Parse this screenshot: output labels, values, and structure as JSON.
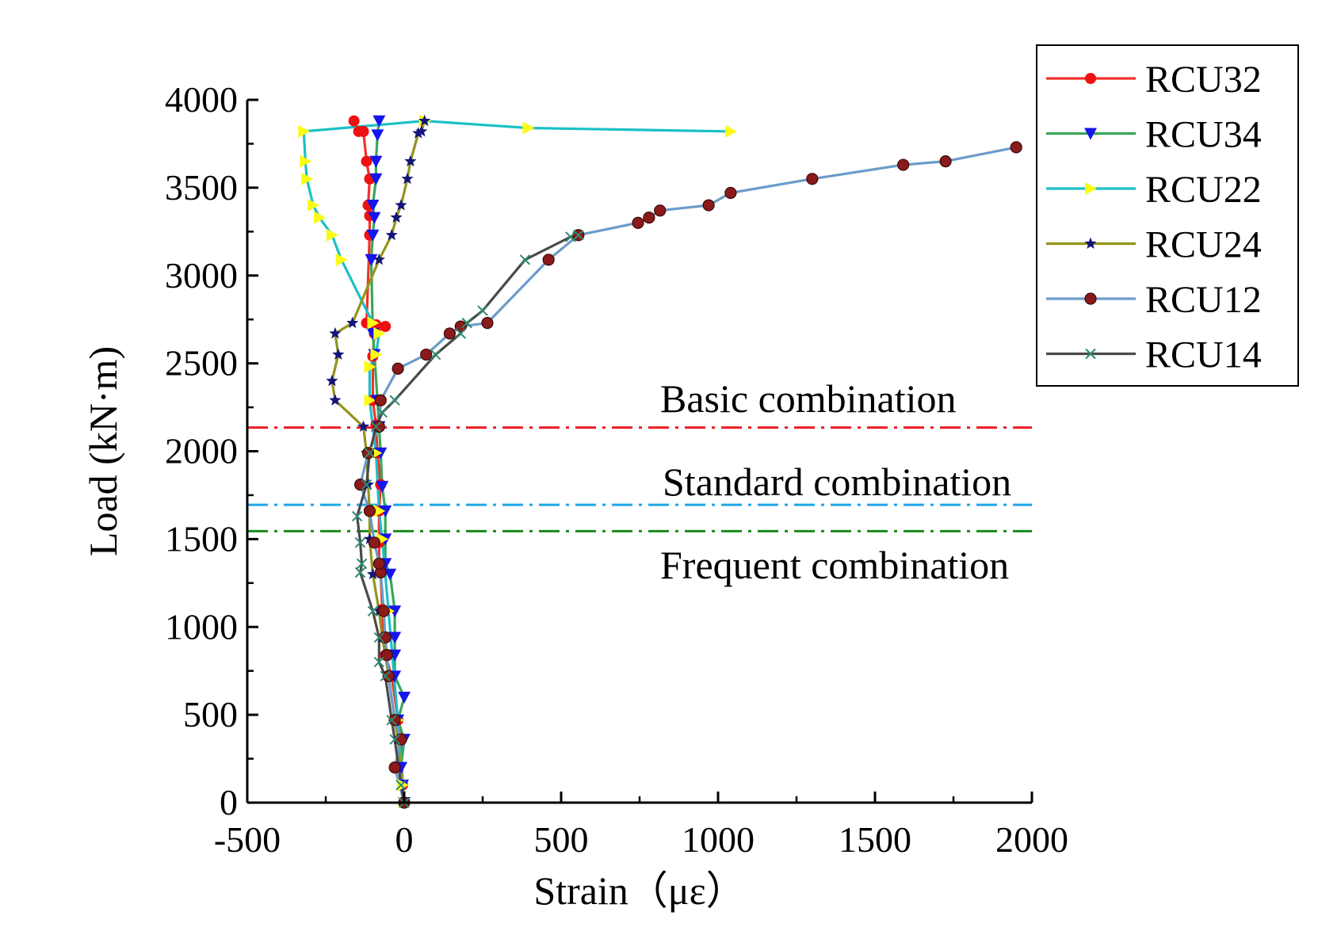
{
  "chart_data": {
    "type": "line",
    "title": "",
    "xlabel": "Strain（με）",
    "ylabel": "Load (kN·m)",
    "xlim": [
      -500,
      2000
    ],
    "ylim": [
      0,
      4000
    ],
    "x_ticks": [
      -500,
      0,
      500,
      1000,
      1500,
      2000
    ],
    "y_ticks": [
      0,
      500,
      1000,
      1500,
      2000,
      2500,
      3000,
      3500,
      4000
    ],
    "grid": false,
    "legend_position": "top-right",
    "reference_lines": [
      {
        "label": "Basic combination",
        "y": 2135,
        "color": "#ee1c24"
      },
      {
        "label": "Standard combination",
        "y": 1695,
        "color": "#1ea7e6"
      },
      {
        "label": "Frequent combination",
        "y": 1545,
        "color": "#1c8a1c"
      }
    ],
    "series": [
      {
        "name": "RCU32",
        "color": "#f0332a",
        "marker": "circle",
        "marker_color": "#ee1111",
        "points": [
          [
            0,
            0
          ],
          [
            -5,
            100
          ],
          [
            -10,
            360
          ],
          [
            -20,
            470
          ],
          [
            -40,
            720
          ],
          [
            -60,
            840
          ],
          [
            -65,
            940
          ],
          [
            -70,
            1100
          ],
          [
            -75,
            1310
          ],
          [
            -80,
            1360
          ],
          [
            -80,
            1480
          ],
          [
            -80,
            1660
          ],
          [
            -75,
            1810
          ],
          [
            -85,
            1990
          ],
          [
            -90,
            2150
          ],
          [
            -100,
            2290
          ],
          [
            -100,
            2540
          ],
          [
            -95,
            2670
          ],
          [
            -60,
            2710
          ],
          [
            -90,
            2720
          ],
          [
            -120,
            2730
          ],
          [
            -110,
            3230
          ],
          [
            -110,
            3340
          ],
          [
            -115,
            3400
          ],
          [
            -110,
            3550
          ],
          [
            -120,
            3650
          ],
          [
            -130,
            3820
          ],
          [
            -145,
            3820
          ],
          [
            -160,
            3880
          ]
        ]
      },
      {
        "name": "RCU34",
        "color": "#3aa65a",
        "marker": "triangle-down",
        "marker_color": "#1515ee",
        "points": [
          [
            0,
            0
          ],
          [
            -5,
            100
          ],
          [
            -10,
            200
          ],
          [
            0,
            360
          ],
          [
            -20,
            470
          ],
          [
            0,
            600
          ],
          [
            -30,
            720
          ],
          [
            -30,
            840
          ],
          [
            -30,
            940
          ],
          [
            -30,
            1090
          ],
          [
            -45,
            1300
          ],
          [
            -60,
            1360
          ],
          [
            -60,
            1500
          ],
          [
            -60,
            1660
          ],
          [
            -70,
            1800
          ],
          [
            -75,
            1990
          ],
          [
            -80,
            2140
          ],
          [
            -85,
            2290
          ],
          [
            -95,
            2550
          ],
          [
            -100,
            2670
          ],
          [
            -105,
            3090
          ],
          [
            -100,
            3230
          ],
          [
            -95,
            3330
          ],
          [
            -100,
            3400
          ],
          [
            -90,
            3550
          ],
          [
            -90,
            3650
          ],
          [
            -85,
            3800
          ],
          [
            -80,
            3880
          ]
        ]
      },
      {
        "name": "RCU22",
        "color": "#1bc0c6",
        "marker": "triangle-right",
        "marker_color": "#fbfb14",
        "points": [
          [
            0,
            0
          ],
          [
            -5,
            100
          ],
          [
            -20,
            470
          ],
          [
            -50,
            1090
          ],
          [
            -70,
            1500
          ],
          [
            -80,
            1660
          ],
          [
            -90,
            1990
          ],
          [
            -110,
            2290
          ],
          [
            -110,
            2480
          ],
          [
            -90,
            2550
          ],
          [
            -80,
            2670
          ],
          [
            -100,
            2730
          ],
          [
            -200,
            3090
          ],
          [
            -230,
            3230
          ],
          [
            -270,
            3330
          ],
          [
            -290,
            3400
          ],
          [
            -310,
            3550
          ],
          [
            -315,
            3650
          ],
          [
            -320,
            3820
          ],
          [
            65,
            3880
          ],
          [
            395,
            3840
          ],
          [
            1040,
            3820
          ]
        ]
      },
      {
        "name": "RCU24",
        "color": "#93941c",
        "marker": "star",
        "marker_color": "#14147a",
        "points": [
          [
            0,
            0
          ],
          [
            -20,
            360
          ],
          [
            -30,
            470
          ],
          [
            -50,
            720
          ],
          [
            -60,
            840
          ],
          [
            -70,
            940
          ],
          [
            -80,
            1090
          ],
          [
            -100,
            1300
          ],
          [
            -110,
            1500
          ],
          [
            -110,
            1660
          ],
          [
            -115,
            1810
          ],
          [
            -120,
            1990
          ],
          [
            -130,
            2140
          ],
          [
            -220,
            2290
          ],
          [
            -230,
            2400
          ],
          [
            -210,
            2550
          ],
          [
            -220,
            2670
          ],
          [
            -165,
            2730
          ],
          [
            -80,
            3090
          ],
          [
            -40,
            3230
          ],
          [
            -25,
            3330
          ],
          [
            -10,
            3400
          ],
          [
            10,
            3550
          ],
          [
            20,
            3650
          ],
          [
            45,
            3810
          ],
          [
            55,
            3820
          ],
          [
            65,
            3880
          ]
        ]
      },
      {
        "name": "RCU12",
        "color": "#6b9cc9",
        "marker": "sphere",
        "marker_color": "#8b1a1a",
        "points": [
          [
            0,
            0
          ],
          [
            -30,
            200
          ],
          [
            -10,
            360
          ],
          [
            -30,
            470
          ],
          [
            -50,
            720
          ],
          [
            -55,
            840
          ],
          [
            -60,
            940
          ],
          [
            -65,
            1090
          ],
          [
            -75,
            1310
          ],
          [
            -80,
            1360
          ],
          [
            -95,
            1480
          ],
          [
            -110,
            1660
          ],
          [
            -140,
            1810
          ],
          [
            -115,
            1990
          ],
          [
            -80,
            2140
          ],
          [
            -75,
            2290
          ],
          [
            -20,
            2470
          ],
          [
            70,
            2550
          ],
          [
            145,
            2670
          ],
          [
            180,
            2710
          ],
          [
            265,
            2730
          ],
          [
            460,
            3090
          ],
          [
            555,
            3230
          ],
          [
            745,
            3300
          ],
          [
            780,
            3330
          ],
          [
            815,
            3370
          ],
          [
            970,
            3400
          ],
          [
            1040,
            3470
          ],
          [
            1300,
            3550
          ],
          [
            1590,
            3630
          ],
          [
            1725,
            3650
          ],
          [
            1950,
            3730
          ]
        ]
      },
      {
        "name": "RCU14",
        "color": "#4a4a4a",
        "marker": "x",
        "marker_color": "#2e8b6e",
        "points": [
          [
            0,
            0
          ],
          [
            -10,
            100
          ],
          [
            -30,
            360
          ],
          [
            -40,
            470
          ],
          [
            -60,
            720
          ],
          [
            -80,
            800
          ],
          [
            -80,
            940
          ],
          [
            -100,
            1090
          ],
          [
            -140,
            1310
          ],
          [
            -135,
            1360
          ],
          [
            -140,
            1480
          ],
          [
            -150,
            1630
          ],
          [
            -120,
            1810
          ],
          [
            -110,
            1990
          ],
          [
            -90,
            2140
          ],
          [
            -70,
            2220
          ],
          [
            -30,
            2290
          ],
          [
            100,
            2550
          ],
          [
            180,
            2670
          ],
          [
            200,
            2730
          ],
          [
            250,
            2800
          ],
          [
            385,
            3090
          ],
          [
            530,
            3220
          ],
          [
            555,
            3230
          ]
        ]
      }
    ]
  }
}
